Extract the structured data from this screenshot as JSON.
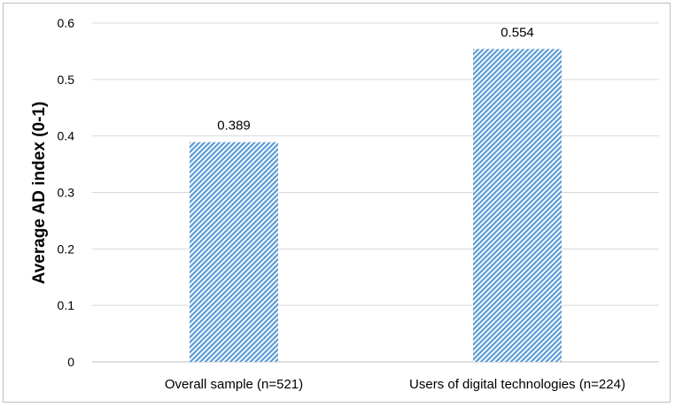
{
  "chart_data": {
    "type": "bar",
    "categories": [
      "Overall sample (n=521)",
      "Users of digital technologies (n=224)"
    ],
    "values": [
      0.389,
      0.554
    ],
    "data_labels": [
      "0.389",
      "0.554"
    ],
    "ylabel": "Average AD index (0-1)",
    "xlabel": "",
    "ylim": [
      0,
      0.6
    ],
    "yticks": [
      "0",
      "0.1",
      "0.2",
      "0.3",
      "0.4",
      "0.5",
      "0.6"
    ],
    "grid": true,
    "legend": "none",
    "bar_color": "#5b9bd5",
    "bar_pattern": "diagonal-hatch"
  }
}
